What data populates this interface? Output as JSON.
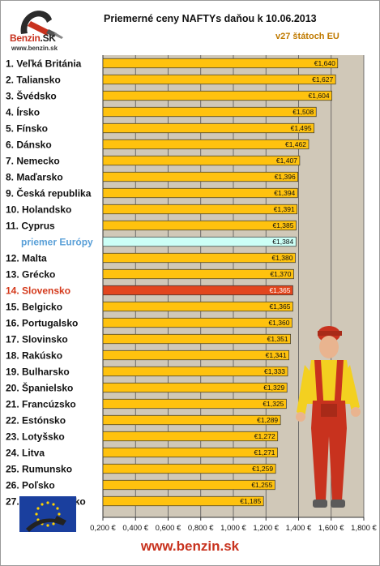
{
  "branding": {
    "logo_text_a": "Benzin",
    "logo_text_b": ".SK",
    "logo_url": "www.benzin.sk"
  },
  "footer": {
    "url": "www.benzin.sk"
  },
  "colors": {
    "plot_bg": "#d0c8b8",
    "bar_fill": "#ffc20e",
    "bar_highlight": "#e2461e",
    "bar_average": "#ccfff6",
    "label_highlight": "#d4391b",
    "label_average": "#5aa0d8",
    "label_normal": "#111111"
  },
  "chart_data": {
    "type": "bar",
    "orientation": "horizontal",
    "title": "Priemerné ceny NAFTYs daňou k 10.06.2013",
    "subtitle": "v27 štátoch EU",
    "xlabel": "",
    "ylabel": "",
    "xlim": [
      0.2,
      1.8
    ],
    "x_ticks": [
      0.2,
      0.4,
      0.6,
      0.8,
      1.0,
      1.2,
      1.4,
      1.6,
      1.8
    ],
    "x_tick_labels": [
      "0,200 €",
      "0,400 €",
      "0,600 €",
      "0,800 €",
      "1,000 €",
      "1,200 €",
      "1,400 €",
      "1,600 €",
      "1,800 €"
    ],
    "grid": true,
    "categories": [
      "1. Veľká Británia",
      "2. Taliansko",
      "3. Švédsko",
      "4. Írsko",
      "5. Fínsko",
      "6. Dánsko",
      "7. Nemecko",
      "8. Maďarsko",
      "9. Česká republika",
      "10. Holandsko",
      "11. Cyprus",
      "priemer Európy",
      "12. Malta",
      "13. Grécko",
      "14. Slovensko",
      "15. Belgicko",
      "16. Portugalsko",
      "17. Slovinsko",
      "18. Rakúsko",
      "19. Bulharsko",
      "20. Španielsko",
      "21. Francúzsko",
      "22. Estónsko",
      "23. Lotyšsko",
      "24. Litva",
      "25. Rumunsko",
      "26. Poľsko",
      "27. Luxembursko"
    ],
    "values": [
      1.64,
      1.627,
      1.604,
      1.508,
      1.495,
      1.462,
      1.407,
      1.396,
      1.394,
      1.391,
      1.385,
      1.384,
      1.38,
      1.37,
      1.365,
      1.365,
      1.36,
      1.351,
      1.341,
      1.333,
      1.329,
      1.325,
      1.289,
      1.272,
      1.271,
      1.259,
      1.255,
      1.185
    ],
    "value_labels": [
      "€1,640",
      "€1,627",
      "€1,604",
      "€1,508",
      "€1,495",
      "€1,462",
      "€1,407",
      "€1,396",
      "€1,394",
      "€1,391",
      "€1,385",
      "€1,384",
      "€1,380",
      "€1,370",
      "€1,365",
      "€1,365",
      "€1,360",
      "€1,351",
      "€1,341",
      "€1,333",
      "€1,329",
      "€1,325",
      "€1,289",
      "€1,272",
      "€1,271",
      "€1,259",
      "€1,255",
      "€1,185"
    ],
    "highlight_index": 14,
    "average_index": 11
  }
}
